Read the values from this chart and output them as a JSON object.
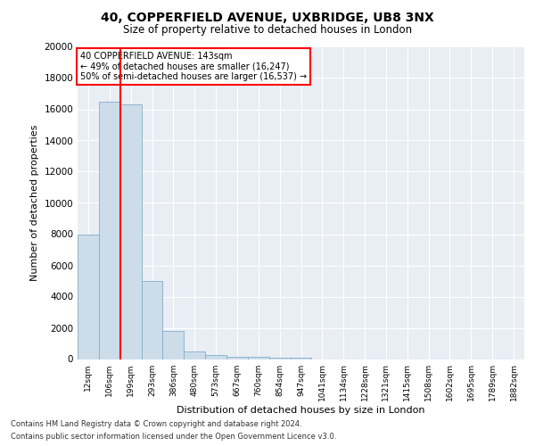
{
  "title1": "40, COPPERFIELD AVENUE, UXBRIDGE, UB8 3NX",
  "title2": "Size of property relative to detached houses in London",
  "xlabel": "Distribution of detached houses by size in London",
  "ylabel": "Number of detached properties",
  "footnote1": "Contains HM Land Registry data © Crown copyright and database right 2024.",
  "footnote2": "Contains public sector information licensed under the Open Government Licence v3.0.",
  "annotation_line1": "40 COPPERFIELD AVENUE: 143sqm",
  "annotation_line2": "← 49% of detached houses are smaller (16,247)",
  "annotation_line3": "50% of semi-detached houses are larger (16,537) →",
  "bar_labels": [
    "12sqm",
    "106sqm",
    "199sqm",
    "293sqm",
    "386sqm",
    "480sqm",
    "573sqm",
    "667sqm",
    "760sqm",
    "854sqm",
    "947sqm",
    "1041sqm",
    "1134sqm",
    "1228sqm",
    "1321sqm",
    "1415sqm",
    "1508sqm",
    "1602sqm",
    "1695sqm",
    "1789sqm",
    "1882sqm"
  ],
  "bar_values": [
    8000,
    16500,
    16300,
    5000,
    1800,
    500,
    270,
    170,
    120,
    90,
    70,
    0,
    0,
    0,
    0,
    0,
    0,
    0,
    0,
    0,
    0
  ],
  "bar_color": "#ccdce9",
  "bar_edgecolor": "#85aec8",
  "redline_x": 2.0,
  "ylim": [
    0,
    20000
  ],
  "yticks": [
    0,
    2000,
    4000,
    6000,
    8000,
    10000,
    12000,
    14000,
    16000,
    18000,
    20000
  ],
  "background_color": "#e8eef4"
}
